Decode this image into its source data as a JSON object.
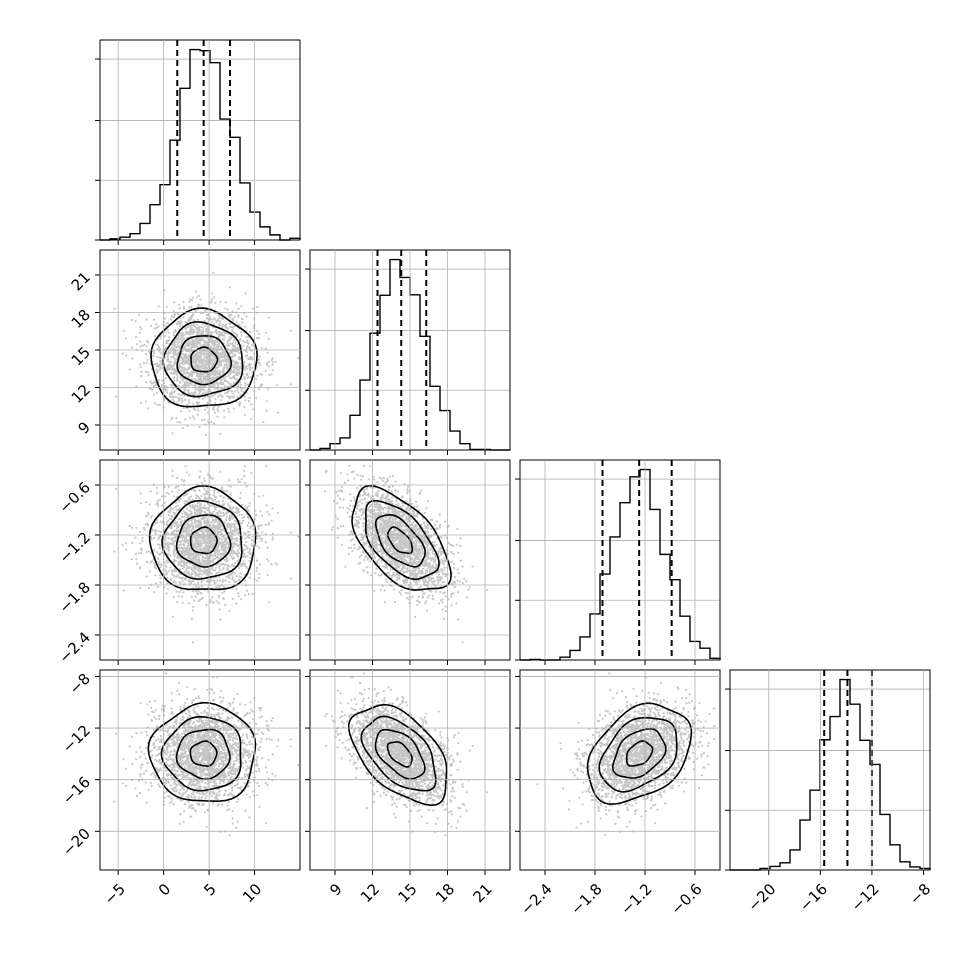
{
  "chart_data": {
    "type": "corner",
    "grid": true,
    "parameters": [
      {
        "range": [
          -7,
          15
        ],
        "mean": 4.4,
        "std": 2.9,
        "quantiles": [
          1.5,
          4.4,
          7.3
        ],
        "ticks": [
          -5,
          0,
          5,
          10
        ]
      },
      {
        "range": [
          7,
          23
        ],
        "mean": 14.2,
        "std": 1.95,
        "quantiles": [
          12.4,
          14.3,
          16.3
        ],
        "ticks": [
          9,
          12,
          15,
          18,
          21
        ]
      },
      {
        "range": [
          -2.7,
          -0.3
        ],
        "mean": -1.27,
        "std": 0.31,
        "quantiles": [
          -1.71,
          -1.27,
          -0.88
        ],
        "ticks": [
          -2.4,
          -1.8,
          -1.2,
          -0.6
        ]
      },
      {
        "range": [
          -23,
          -7.5
        ],
        "mean": -14.0,
        "std": 1.9,
        "quantiles": [
          -15.7,
          -13.9,
          -12.0
        ],
        "ticks": [
          -20,
          -16,
          -12,
          -8
        ]
      }
    ],
    "correlations": [
      [
        1.0,
        0.0,
        0.0,
        0.0
      ],
      [
        0.0,
        1.0,
        -0.55,
        -0.5
      ],
      [
        0.0,
        -0.55,
        1.0,
        0.35
      ],
      [
        0.0,
        -0.5,
        0.35,
        1.0
      ]
    ]
  }
}
